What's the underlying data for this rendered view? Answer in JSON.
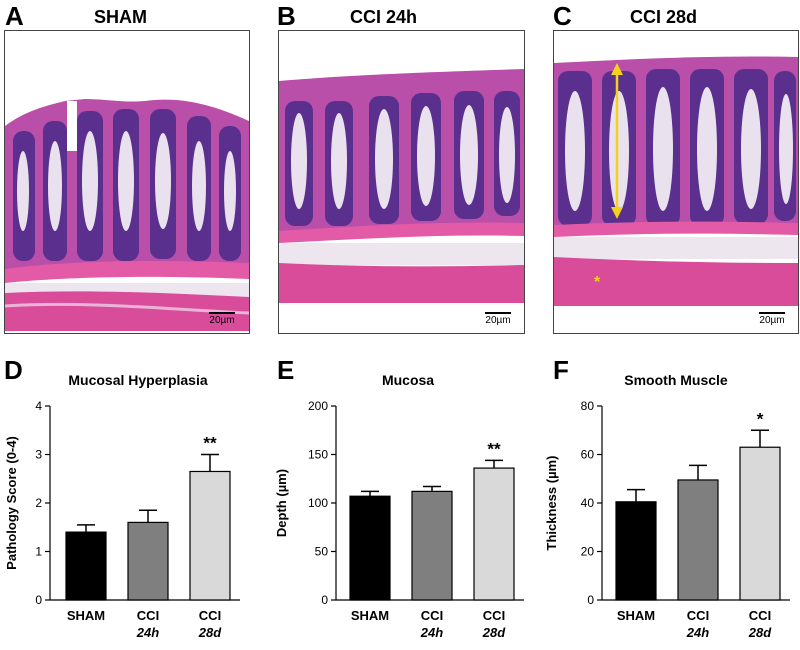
{
  "panels": [
    {
      "letter": "A",
      "title": "SHAM",
      "scale": "20µm"
    },
    {
      "letter": "B",
      "title": "CCI 24h",
      "scale": "20µm"
    },
    {
      "letter": "C",
      "title": "CCI 28d",
      "scale": "20µm",
      "annotation": "*"
    }
  ],
  "chart_letters": [
    "D",
    "E",
    "F"
  ],
  "colors": {
    "black": "#000000",
    "dark_gray": "#7f7f7f",
    "light_gray": "#d9d9d9",
    "arrow": "#f2d21b"
  },
  "chart_data": [
    {
      "type": "bar",
      "title": "Mucosal Hyperplasia",
      "ylabel": "Pathology Score (0-4)",
      "ylim": [
        0,
        4
      ],
      "yticks": [
        0,
        1,
        2,
        3,
        4
      ],
      "categories": [
        {
          "line1": "SHAM",
          "line2": ""
        },
        {
          "line1": "CCI",
          "line2": "24h"
        },
        {
          "line1": "CCI",
          "line2": "28d"
        }
      ],
      "values": [
        1.4,
        1.6,
        2.65
      ],
      "errors": [
        0.15,
        0.25,
        0.35
      ],
      "significance": [
        "",
        "",
        "**"
      ]
    },
    {
      "type": "bar",
      "title": "Mucosa",
      "ylabel": "Depth (µm)",
      "ylim": [
        0,
        200
      ],
      "yticks": [
        0,
        50,
        100,
        150,
        200
      ],
      "categories": [
        {
          "line1": "SHAM",
          "line2": ""
        },
        {
          "line1": "CCI",
          "line2": "24h"
        },
        {
          "line1": "CCI",
          "line2": "28d"
        }
      ],
      "values": [
        107,
        112,
        136
      ],
      "errors": [
        5,
        5,
        8
      ],
      "significance": [
        "",
        "",
        "**"
      ]
    },
    {
      "type": "bar",
      "title": "Smooth Muscle",
      "ylabel": "Thickness (µm)",
      "ylim": [
        0,
        80
      ],
      "yticks": [
        0,
        20,
        40,
        60,
        80
      ],
      "categories": [
        {
          "line1": "SHAM",
          "line2": ""
        },
        {
          "line1": "CCI",
          "line2": "24h"
        },
        {
          "line1": "CCI",
          "line2": "28d"
        }
      ],
      "values": [
        40.5,
        49.5,
        63
      ],
      "errors": [
        5,
        6,
        7
      ],
      "significance": [
        "",
        "",
        "*"
      ]
    }
  ]
}
